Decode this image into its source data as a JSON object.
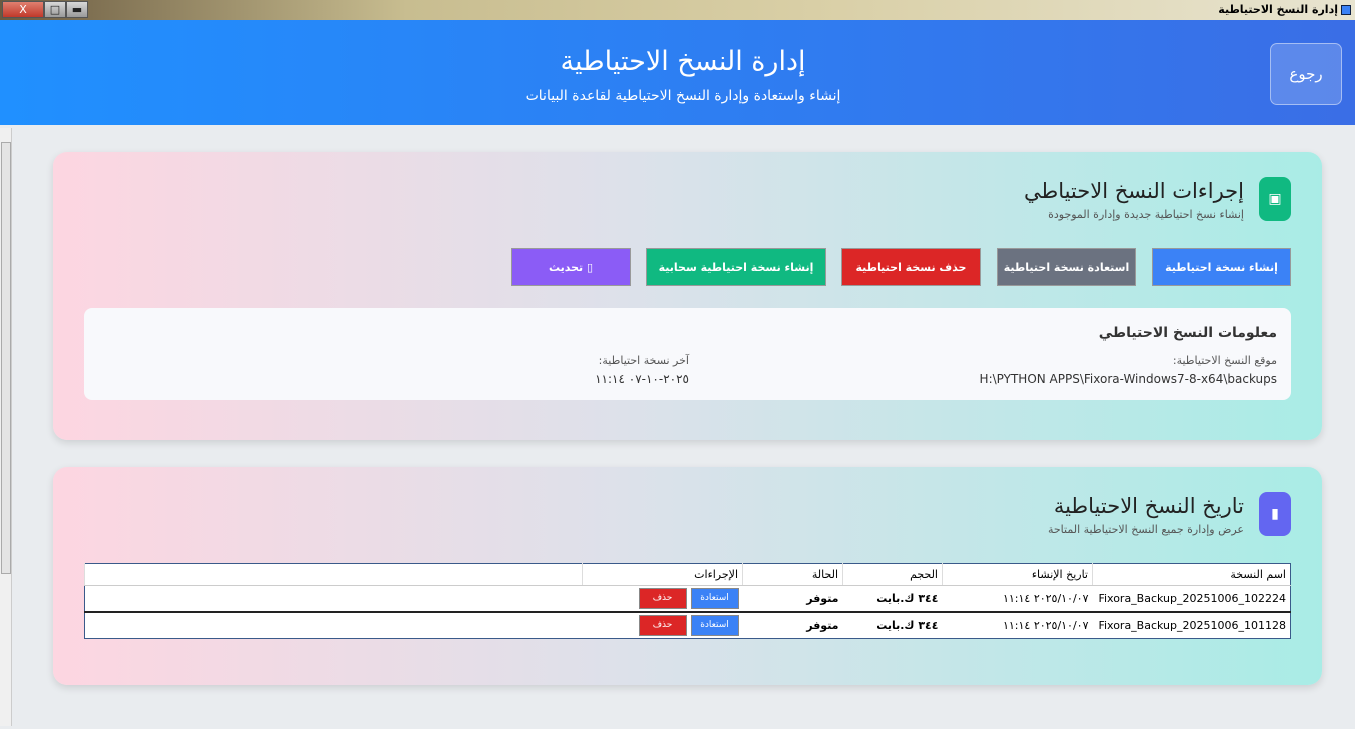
{
  "window": {
    "title": "إدارة النسخ الاحتياطية",
    "close": "X",
    "maximize": "□",
    "minimize": "▬"
  },
  "header": {
    "title": "إدارة النسخ الاحتياطية",
    "subtitle": "إنشاء واستعادة وإدارة النسخ الاحتياطية لقاعدة البيانات",
    "back": "رجوع"
  },
  "actions": {
    "title": "إجراءات النسخ الاحتياطي",
    "subtitle": "إنشاء نسخ احتياطية جديدة وإدارة الموجودة",
    "icon": "save-icon",
    "buttons": [
      "إنشاء نسخة احتياطية",
      "استعادة نسخة احتياطية",
      "حذف نسخة احتياطية",
      "إنشاء نسخة احتياطية سحابية",
      "▯ تحديث"
    ],
    "colors": [
      "#3b82f6",
      "#6b7280",
      "#dc2626",
      "#10b981",
      "#8b5cf6"
    ]
  },
  "info": {
    "title": "معلومات النسخ الاحتياطي",
    "location_label": "موقع النسخ الاحتياطية:",
    "location": "H:\\PYTHON APPS\\Fixora-Windows7-8-x64\\backups",
    "last_label": "آخر نسخة احتياطية:",
    "last": "٢٠٢٥-١٠-٠٧ ١١:١٤"
  },
  "history": {
    "title": "تاريخ النسخ الاحتياطية",
    "subtitle": "عرض وإدارة جميع النسخ الاحتياطية المتاحة",
    "icon": "clipboard-icon",
    "columns": [
      "اسم النسخة",
      "تاريخ الإنشاء",
      "الحجم",
      "الحالة",
      "الإجراءات"
    ],
    "rows": [
      {
        "name": "Fixora_Backup_20251006_102224",
        "date": "٢٠٢٥/١٠/٠٧ ١١:١٤",
        "size": "٣٤٤ ك.بايت",
        "status": "متوفر",
        "restore": "استعادة",
        "delete": "حذف"
      },
      {
        "name": "Fixora_Backup_20251006_101128",
        "date": "٢٠٢٥/١٠/٠٧ ١١:١٤",
        "size": "٣٤٤ ك.بايت",
        "status": "متوفر",
        "restore": "استعادة",
        "delete": "حذف"
      }
    ]
  }
}
